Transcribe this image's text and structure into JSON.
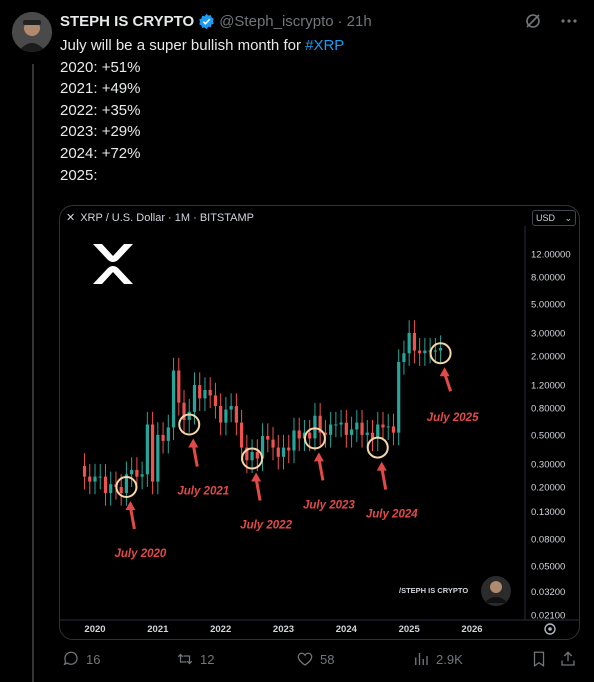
{
  "tweet": {
    "display_name": "STEPH IS CRYPTO",
    "handle": "@Steph_iscrypto",
    "time": "21h",
    "line1_prefix": "July will be a super bullish month for ",
    "hashtag": "#XRP",
    "body_lines": "\n2020: +51%\n2021: +49%\n2022: +35%\n2023: +29%\n2024: +72%\n2025:"
  },
  "chart_header": {
    "title": "XRP / U.S. Dollar · 1M · BITSTAMP",
    "currency": "USD"
  },
  "chart_data": {
    "type": "candlestick",
    "pair": "XRP / U.S. Dollar",
    "interval": "1M",
    "exchange": "BITSTAMP",
    "price_axis_scale": "log",
    "price_axis_ticks": [
      "12.00000",
      "8.00000",
      "5.00000",
      "3.00000",
      "2.00000",
      "1.20000",
      "0.80000",
      "0.50000",
      "0.30000",
      "0.20000",
      "0.13000",
      "0.08000",
      "0.05000",
      "0.03200",
      "0.02100"
    ],
    "x_axis_ticks": [
      "2020",
      "2021",
      "2022",
      "2023",
      "2024",
      "2025",
      "2026"
    ],
    "annotations": [
      {
        "label": "July 2020",
        "date": "2020-07",
        "price": 0.2
      },
      {
        "label": "July 2021",
        "date": "2021-07",
        "price": 0.6
      },
      {
        "label": "July 2022",
        "date": "2022-07",
        "price": 0.33
      },
      {
        "label": "July 2023",
        "date": "2023-07",
        "price": 0.47
      },
      {
        "label": "July 2024",
        "date": "2024-07",
        "price": 0.4
      },
      {
        "label": "July 2025",
        "date": "2025-07",
        "price": 2.1
      }
    ],
    "watermark": "/STEPH IS CRYPTO"
  },
  "stats": {
    "replies": "16",
    "reposts": "12",
    "likes": "58",
    "views": "2.9K"
  }
}
